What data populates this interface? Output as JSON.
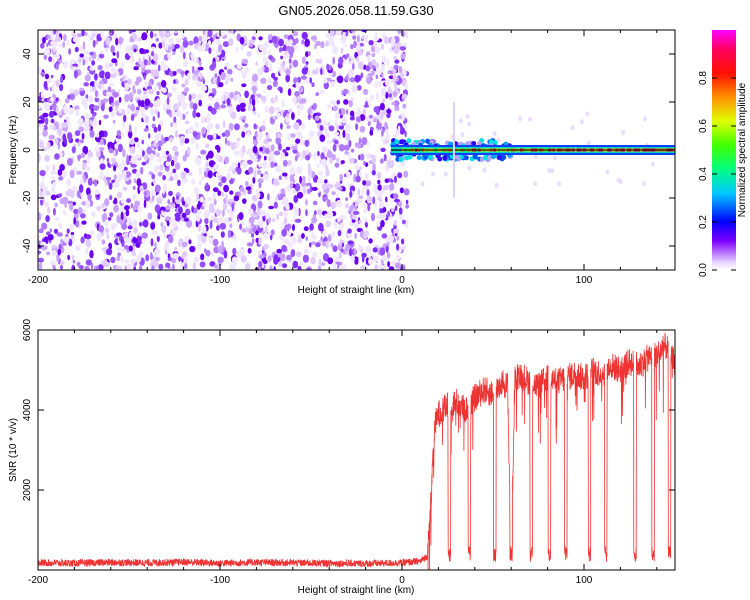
{
  "title": "GN05.2026.058.11.59.G30",
  "chart_data": [
    {
      "type": "heatmap",
      "xlabel": "Height of straight line (km)",
      "ylabel": "Frequency (Hz)",
      "xlim": [
        -200,
        150
      ],
      "ylim": [
        -50,
        50
      ],
      "xticks": [
        -200,
        -100,
        0,
        100
      ],
      "yticks": [
        -40,
        -20,
        0,
        20,
        40
      ],
      "colorbar": {
        "label": "Normalized spectral amplitude",
        "range": [
          0,
          1
        ],
        "ticks": [
          0.0,
          0.2,
          0.4,
          0.6,
          0.8
        ],
        "colormap": [
          "#ffffff",
          "#7f00ff",
          "#0000ff",
          "#00ffff",
          "#00ff00",
          "#ffff00",
          "#ff8000",
          "#ff0000",
          "#ff00ff"
        ]
      },
      "description_regions": [
        {
          "x_range": [
            -200,
            3
          ],
          "freq_range": [
            -50,
            50
          ],
          "amplitude": 0.05,
          "pattern": "noise"
        },
        {
          "x_range": [
            -6,
            150
          ],
          "freq_range": [
            -1.5,
            1.5
          ],
          "amplitude": 0.75,
          "pattern": "narrow band"
        },
        {
          "x_range": [
            -6,
            60
          ],
          "freq_range": [
            -4,
            4
          ],
          "amplitude": 0.25,
          "pattern": "spread"
        }
      ]
    },
    {
      "type": "line",
      "xlabel": "Height of straight line (km)",
      "ylabel": "SNR (10 * v/v)",
      "xlim": [
        -200,
        150
      ],
      "ylim": [
        0,
        6000
      ],
      "xticks": [
        -200,
        -100,
        0,
        100
      ],
      "yticks": [
        2000,
        4000,
        6000
      ],
      "series": [
        {
          "color": "#ee3333",
          "x": [
            -200,
            -180,
            -160,
            -140,
            -120,
            -100,
            -80,
            -60,
            -40,
            -20,
            0,
            10,
            14,
            16,
            18,
            20,
            22,
            25,
            30,
            35,
            40,
            45,
            50,
            55,
            58,
            60,
            62,
            65,
            70,
            75,
            80,
            85,
            90,
            95,
            100,
            105,
            110,
            115,
            120,
            125,
            130,
            135,
            140,
            145,
            150
          ],
          "values": [
            180,
            170,
            190,
            180,
            200,
            170,
            190,
            180,
            170,
            160,
            180,
            220,
            350,
            1800,
            3600,
            3900,
            4000,
            4100,
            4200,
            4000,
            4300,
            4500,
            4400,
            4700,
            4600,
            300,
            4800,
            4900,
            4700,
            4600,
            4800,
            4700,
            4800,
            4900,
            4800,
            5000,
            4900,
            5100,
            5000,
            5200,
            5100,
            5300,
            5400,
            5600,
            5200
          ]
        }
      ],
      "dropouts_x": [
        26,
        37,
        51,
        60,
        71,
        81,
        90,
        103,
        112,
        128,
        138,
        147
      ]
    }
  ]
}
